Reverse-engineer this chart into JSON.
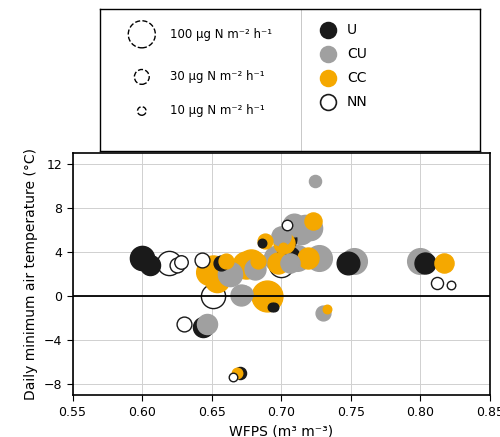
{
  "xlabel": "WFPS (m³ m⁻³)",
  "ylabel": "Daily minimum air temperature (°C)",
  "xlim": [
    0.55,
    0.85
  ],
  "ylim": [
    -9,
    13
  ],
  "xticks": [
    0.55,
    0.6,
    0.65,
    0.7,
    0.75,
    0.8,
    0.85
  ],
  "yticks": [
    -8,
    -4,
    0,
    4,
    8,
    12
  ],
  "colors": {
    "U": "#1a1a1a",
    "CU": "#a0a0a0",
    "CC": "#f5a800",
    "NN": "#ffffff"
  },
  "edgecolors": {
    "U": "#1a1a1a",
    "CU": "#a0a0a0",
    "CC": "#f5a800",
    "NN": "#1a1a1a"
  },
  "ref_flux": 100,
  "ref_size": 380,
  "data": [
    {
      "wfps": 0.6,
      "temp": 3.5,
      "flux": 80,
      "treatment": "U"
    },
    {
      "wfps": 0.606,
      "temp": 2.8,
      "flux": 55,
      "treatment": "U"
    },
    {
      "wfps": 0.619,
      "temp": 3.0,
      "flux": 80,
      "treatment": "NN"
    },
    {
      "wfps": 0.625,
      "temp": 2.8,
      "flux": 30,
      "treatment": "NN"
    },
    {
      "wfps": 0.628,
      "temp": 3.1,
      "flux": 25,
      "treatment": "NN"
    },
    {
      "wfps": 0.63,
      "temp": -2.5,
      "flux": 30,
      "treatment": "NN"
    },
    {
      "wfps": 0.643,
      "temp": 3.3,
      "flux": 30,
      "treatment": "NN"
    },
    {
      "wfps": 0.644,
      "temp": -2.8,
      "flux": 55,
      "treatment": "U"
    },
    {
      "wfps": 0.647,
      "temp": -2.5,
      "flux": 55,
      "treatment": "CU"
    },
    {
      "wfps": 0.648,
      "temp": 2.2,
      "flux": 90,
      "treatment": "CC"
    },
    {
      "wfps": 0.651,
      "temp": 2.5,
      "flux": 100,
      "treatment": "CC"
    },
    {
      "wfps": 0.651,
      "temp": 0.0,
      "flux": 80,
      "treatment": "NN"
    },
    {
      "wfps": 0.654,
      "temp": 1.5,
      "flux": 80,
      "treatment": "CC"
    },
    {
      "wfps": 0.657,
      "temp": 3.0,
      "flux": 30,
      "treatment": "U"
    },
    {
      "wfps": 0.66,
      "temp": 3.2,
      "flux": 30,
      "treatment": "CC"
    },
    {
      "wfps": 0.663,
      "temp": 2.0,
      "flux": 80,
      "treatment": "CU"
    },
    {
      "wfps": 0.665,
      "temp": -7.3,
      "flux": 10,
      "treatment": "NN"
    },
    {
      "wfps": 0.668,
      "temp": -7.0,
      "flux": 15,
      "treatment": "CC"
    },
    {
      "wfps": 0.67,
      "temp": -7.0,
      "flux": 20,
      "treatment": "U"
    },
    {
      "wfps": 0.671,
      "temp": 0.1,
      "flux": 60,
      "treatment": "CU"
    },
    {
      "wfps": 0.673,
      "temp": 0.2,
      "flux": 40,
      "treatment": "CU"
    },
    {
      "wfps": 0.675,
      "temp": 2.8,
      "flux": 100,
      "treatment": "CC"
    },
    {
      "wfps": 0.678,
      "temp": 3.0,
      "flux": 100,
      "treatment": "CC"
    },
    {
      "wfps": 0.681,
      "temp": 2.5,
      "flux": 60,
      "treatment": "CU"
    },
    {
      "wfps": 0.683,
      "temp": 3.2,
      "flux": 30,
      "treatment": "CC"
    },
    {
      "wfps": 0.686,
      "temp": 4.8,
      "flux": 10,
      "treatment": "U"
    },
    {
      "wfps": 0.688,
      "temp": 5.0,
      "flux": 30,
      "treatment": "CC"
    },
    {
      "wfps": 0.69,
      "temp": 0.0,
      "flux": 130,
      "treatment": "CC"
    },
    {
      "wfps": 0.693,
      "temp": -1.0,
      "flux": 10,
      "treatment": "U"
    },
    {
      "wfps": 0.695,
      "temp": -1.0,
      "flux": 10,
      "treatment": "U"
    },
    {
      "wfps": 0.696,
      "temp": 3.5,
      "flux": 80,
      "treatment": "CU"
    },
    {
      "wfps": 0.698,
      "temp": 3.0,
      "flux": 60,
      "treatment": "CC"
    },
    {
      "wfps": 0.7,
      "temp": 2.8,
      "flux": 80,
      "treatment": "NN"
    },
    {
      "wfps": 0.7,
      "temp": 5.5,
      "flux": 50,
      "treatment": "CU"
    },
    {
      "wfps": 0.701,
      "temp": 4.5,
      "flux": 10,
      "treatment": "CC"
    },
    {
      "wfps": 0.702,
      "temp": 4.8,
      "flux": 60,
      "treatment": "CC"
    },
    {
      "wfps": 0.703,
      "temp": 5.2,
      "flux": 70,
      "treatment": "U"
    },
    {
      "wfps": 0.704,
      "temp": 6.5,
      "flux": 15,
      "treatment": "NN"
    },
    {
      "wfps": 0.705,
      "temp": 3.5,
      "flux": 80,
      "treatment": "U"
    },
    {
      "wfps": 0.706,
      "temp": 3.0,
      "flux": 50,
      "treatment": "CU"
    },
    {
      "wfps": 0.709,
      "temp": 6.5,
      "flux": 70,
      "treatment": "CU"
    },
    {
      "wfps": 0.711,
      "temp": 3.5,
      "flux": 90,
      "treatment": "CU"
    },
    {
      "wfps": 0.714,
      "temp": 5.8,
      "flux": 80,
      "treatment": "CU"
    },
    {
      "wfps": 0.717,
      "temp": 6.3,
      "flux": 80,
      "treatment": "CU"
    },
    {
      "wfps": 0.719,
      "temp": 3.5,
      "flux": 60,
      "treatment": "CC"
    },
    {
      "wfps": 0.721,
      "temp": 6.2,
      "flux": 80,
      "treatment": "CU"
    },
    {
      "wfps": 0.723,
      "temp": 6.8,
      "flux": 40,
      "treatment": "CC"
    },
    {
      "wfps": 0.724,
      "temp": 10.5,
      "flux": 20,
      "treatment": "CU"
    },
    {
      "wfps": 0.727,
      "temp": 3.5,
      "flux": 90,
      "treatment": "CU"
    },
    {
      "wfps": 0.73,
      "temp": -1.5,
      "flux": 30,
      "treatment": "CU"
    },
    {
      "wfps": 0.733,
      "temp": -1.2,
      "flux": 10,
      "treatment": "CC"
    },
    {
      "wfps": 0.748,
      "temp": 3.0,
      "flux": 70,
      "treatment": "U"
    },
    {
      "wfps": 0.752,
      "temp": 3.2,
      "flux": 90,
      "treatment": "CU"
    },
    {
      "wfps": 0.8,
      "temp": 3.2,
      "flux": 90,
      "treatment": "CU"
    },
    {
      "wfps": 0.803,
      "temp": 3.0,
      "flux": 60,
      "treatment": "U"
    },
    {
      "wfps": 0.812,
      "temp": 1.2,
      "flux": 20,
      "treatment": "NN"
    },
    {
      "wfps": 0.817,
      "temp": 3.0,
      "flux": 50,
      "treatment": "CC"
    },
    {
      "wfps": 0.822,
      "temp": 1.0,
      "flux": 10,
      "treatment": "NN"
    }
  ],
  "legend_sizes": [
    100,
    30,
    10
  ],
  "legend_size_labels": [
    "100 μg N m⁻² h⁻¹",
    "30 μg N m⁻² h⁻¹",
    "10 μg N m⁻² h⁻¹"
  ],
  "treatment_labels": [
    "U",
    "CU",
    "CC",
    "NN"
  ],
  "background_color": "#ffffff",
  "grid_color": "#d0d0d0",
  "figsize": [
    5.0,
    4.37
  ],
  "dpi": 100
}
